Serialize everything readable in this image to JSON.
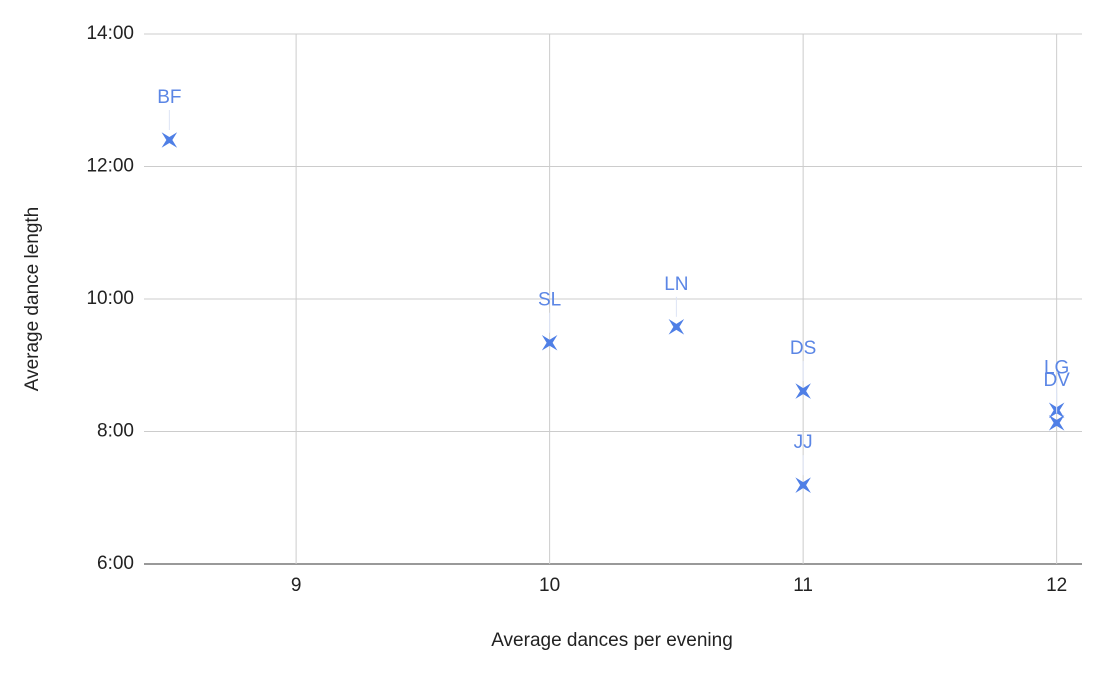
{
  "chart_data": {
    "type": "scatter",
    "xlabel": "Average dances per evening",
    "ylabel": "Average dance length",
    "color": "#4f7fe6",
    "x": [
      8.5,
      10,
      10.5,
      11,
      11,
      12,
      12
    ],
    "values": [
      12.4,
      9.34,
      9.58,
      8.61,
      7.19,
      8.32,
      8.13
    ],
    "point_labels": [
      "BF",
      "SL",
      "LN",
      "DS",
      "JJ",
      "LG",
      "DV"
    ],
    "xlim": [
      8.4,
      12.1
    ],
    "ylim": [
      6,
      14
    ],
    "xticks": [
      9,
      10,
      11,
      12
    ],
    "yticks": [
      {
        "value": 6,
        "label": "6:00"
      },
      {
        "value": 8,
        "label": "8:00"
      },
      {
        "value": 10,
        "label": "10:00"
      },
      {
        "value": 12,
        "label": "12:00"
      },
      {
        "value": 14,
        "label": "14:00"
      }
    ],
    "grid": true
  }
}
